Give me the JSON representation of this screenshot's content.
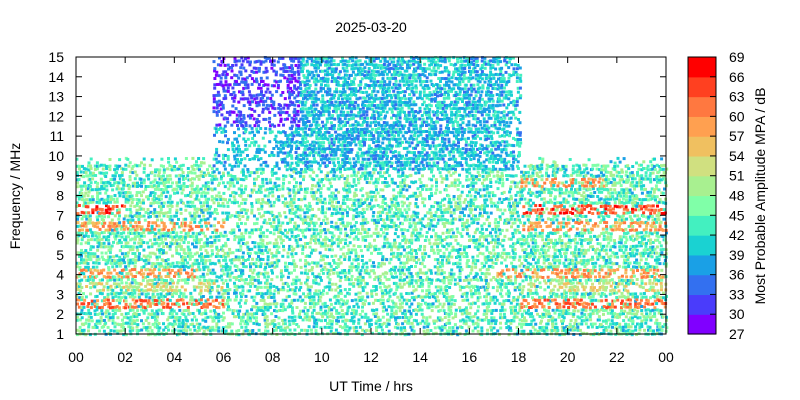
{
  "chart_data": {
    "type": "heatmap",
    "title": "2025-03-20",
    "xlabel": "UT Time / hrs",
    "ylabel": "Frequency / MHz",
    "xlim": [
      0,
      24
    ],
    "ylim": [
      1,
      15
    ],
    "x_ticks": [
      "00",
      "02",
      "04",
      "06",
      "08",
      "10",
      "12",
      "14",
      "16",
      "18",
      "20",
      "22",
      "00"
    ],
    "y_ticks": [
      "1",
      "2",
      "3",
      "4",
      "5",
      "6",
      "7",
      "8",
      "9",
      "10",
      "11",
      "12",
      "13",
      "14",
      "15"
    ],
    "colorbar": {
      "label": "Most Probable Amplitude MPA / dB",
      "range": [
        27,
        69
      ],
      "ticks": [
        "27",
        "30",
        "33",
        "36",
        "39",
        "42",
        "45",
        "48",
        "51",
        "54",
        "57",
        "60",
        "63",
        "66",
        "69"
      ],
      "colors": [
        "#8000ff",
        "#4a3cfb",
        "#3370f0",
        "#1aa0e6",
        "#1ad2d2",
        "#43f0c0",
        "#80ffa8",
        "#a8f090",
        "#d0e080",
        "#f0c060",
        "#ffa050",
        "#ff7840",
        "#ff4020",
        "#ff0000"
      ]
    },
    "coverage": {
      "day_hours": [
        5.5,
        18.0
      ],
      "day_max_freq_mhz": 15,
      "night_max_freq_mhz": 10
    },
    "bands": [
      {
        "freq_mhz": 2.6,
        "mpa_db": 66,
        "hours": [
          [
            0,
            6
          ],
          [
            18,
            24
          ]
        ]
      },
      {
        "freq_mhz": 4.1,
        "mpa_db": 63,
        "hours": [
          [
            0,
            5
          ],
          [
            17,
            24
          ]
        ]
      },
      {
        "freq_mhz": 6.4,
        "mpa_db": 63,
        "hours": [
          [
            0,
            6
          ],
          [
            18,
            24
          ]
        ]
      },
      {
        "freq_mhz": 7.3,
        "mpa_db": 68,
        "hours": [
          [
            0,
            2
          ],
          [
            18,
            24
          ]
        ]
      },
      {
        "freq_mhz": 8.6,
        "mpa_db": 63,
        "hours": [
          [
            18,
            21.5
          ]
        ]
      },
      {
        "freq_mhz": 3.4,
        "mpa_db": 57,
        "hours": [
          [
            0,
            6
          ],
          [
            18,
            24
          ]
        ]
      }
    ]
  }
}
